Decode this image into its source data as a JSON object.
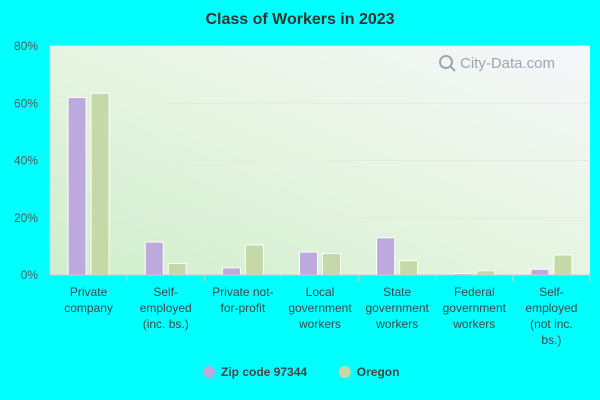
{
  "chart_data": {
    "type": "bar",
    "title": "Class of Workers in 2023",
    "xlabel": "",
    "ylabel": "",
    "ylim": [
      0,
      80
    ],
    "yticks": [
      "0%",
      "20%",
      "40%",
      "60%",
      "80%"
    ],
    "grid": true,
    "legend_position": "bottom",
    "categories": [
      [
        "Private",
        "company"
      ],
      [
        "Self-",
        "employed",
        "(inc. bs.)"
      ],
      [
        "Private not-",
        "for-profit"
      ],
      [
        "Local",
        "government",
        "workers"
      ],
      [
        "State",
        "government",
        "workers"
      ],
      [
        "Federal",
        "government",
        "workers"
      ],
      [
        "Self-",
        "employed",
        "(not inc.",
        "bs.)"
      ]
    ],
    "series": [
      {
        "name": "Zip code 97344",
        "color": "#bda9dc",
        "values": [
          62,
          11.5,
          2.5,
          8,
          13,
          0.5,
          2
        ]
      },
      {
        "name": "Oregon",
        "color": "#c4d9a7",
        "values": [
          63.5,
          4,
          10.5,
          7.5,
          5,
          1.5,
          7
        ]
      }
    ]
  },
  "watermark": {
    "text": "City-Data.com",
    "icon": "magnifier-icon"
  }
}
